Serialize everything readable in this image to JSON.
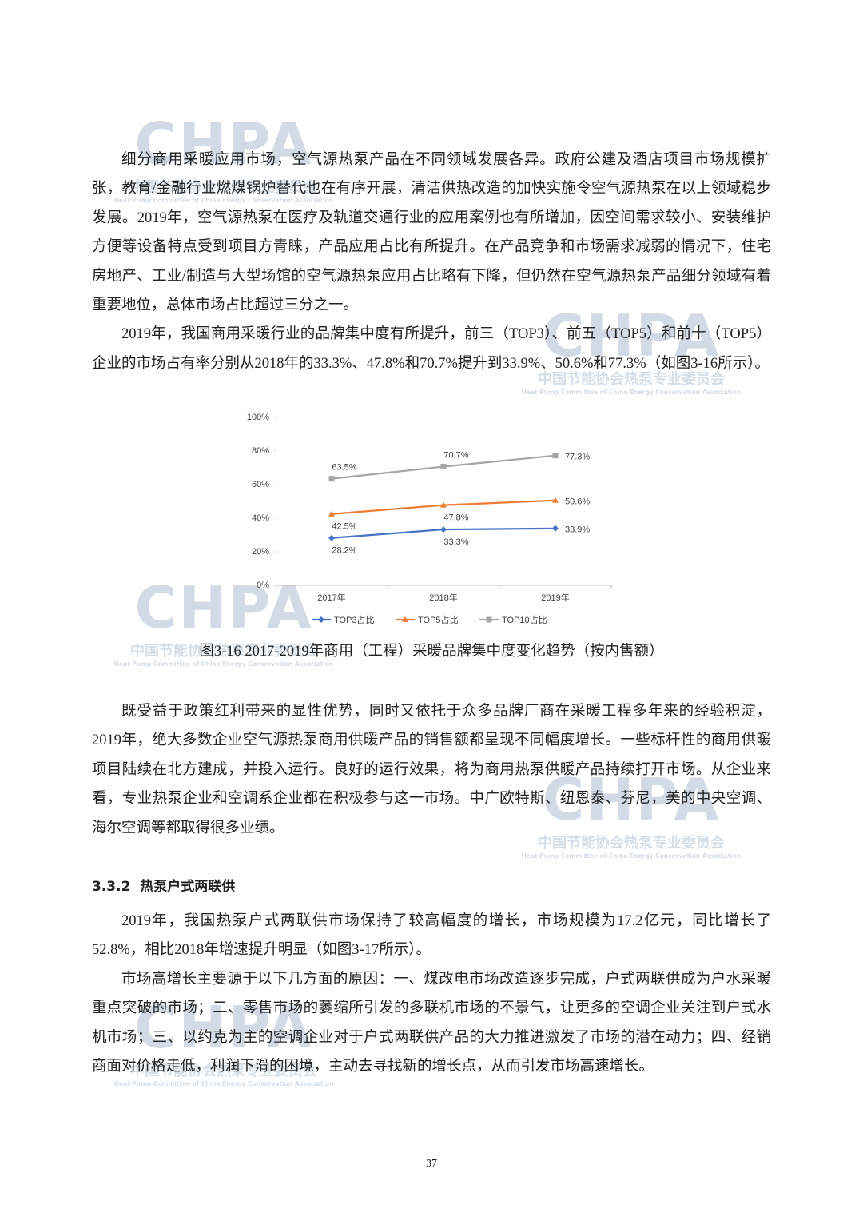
{
  "intro_paragraphs": [
    "细分商用采暖应用市场，空气源热泵产品在不同领域发展各异。政府公建及酒店项目市场规模扩张，教育/金融行业燃煤锅炉替代也在有序开展，清洁供热改造的加快实施令空气源热泵在以上领域稳步发展。2019年，空气源热泵在医疗及轨道交通行业的应用案例也有所增加，因空间需求较小、安装维护方便等设备特点受到项目方青睐，产品应用占比有所提升。在产品竞争和市场需求减弱的情况下，住宅房地产、工业/制造与大型场馆的空气源热泵应用占比略有下降，但仍然在空气源热泵产品细分领域有着重要地位，总体市场占比超过三分之一。",
    "2019年，我国商用采暖行业的品牌集中度有所提升，前三（TOP3）、前五（TOP5）和前十（TOP5）企业的市场占有率分别从2018年的33.3%、47.8%和70.7%提升到33.9%、50.6%和77.3%（如图3-16所示）。"
  ],
  "chart_data": {
    "type": "line",
    "categories": [
      "2017年",
      "2018年",
      "2019年"
    ],
    "series": [
      {
        "name": "TOP3占比",
        "color": "#4472c4",
        "marker": "diamond",
        "values": [
          28.2,
          33.3,
          33.9
        ],
        "value_labels": [
          "28.2%",
          "33.3%",
          "33.9%"
        ]
      },
      {
        "name": "TOP5占比",
        "color": "#ed7d31",
        "marker": "triangle",
        "values": [
          42.5,
          47.8,
          50.6
        ],
        "value_labels": [
          "42.5%",
          "47.8%",
          "50.6%"
        ]
      },
      {
        "name": "TOP10占比",
        "color": "#a5a5a5",
        "marker": "square",
        "values": [
          63.5,
          70.7,
          77.3
        ],
        "value_labels": [
          "63.5%",
          "70.7%",
          "77.3%"
        ]
      }
    ],
    "ylim": [
      0,
      100
    ],
    "yticks": [
      {
        "value": 0,
        "label": "0%"
      },
      {
        "value": 20,
        "label": "20%"
      },
      {
        "value": 40,
        "label": "40%"
      },
      {
        "value": 60,
        "label": "60%"
      },
      {
        "value": 80,
        "label": "80%"
      },
      {
        "value": 100,
        "label": "100%"
      }
    ],
    "grid": false,
    "legend": "bottom"
  },
  "figure_caption": "图3-16 2017-2019年商用（工程）采暖品牌集中度变化趋势（按内售额）",
  "after_figure_paragraphs": [
    "既受益于政策红利带来的显性优势，同时又依托于众多品牌厂商在采暖工程多年来的经验积淀，2019年，绝大多数企业空气源热泵商用供暖产品的销售额都呈现不同幅度增长。一些标杆性的商用供暖项目陆续在北方建成，并投入运行。良好的运行效果，将为商用热泵供暖产品持续打开市场。从企业来看，专业热泵企业和空调系企业都在积极参与这一市场。中广欧特斯、纽恩泰、芬尼，美的中央空调、海尔空调等都取得很多业绩。"
  ],
  "section": {
    "number": "3.3.2",
    "title": "热泵户式两联供",
    "paragraphs": [
      "2019年，我国热泵户式两联供市场保持了较高幅度的增长，市场规模为17.2亿元，同比增长了52.8%，相比2018年增速提升明显（如图3-17所示）。",
      "市场高增长主要源于以下几方面的原因：一、煤改电市场改造逐步完成，户式两联供成为户水采暖重点突破的市场；二、零售市场的萎缩所引发的多联机市场的不景气，让更多的空调企业关注到户式水机市场；三、以约克为主的空调企业对于户式两联供产品的大力推进激发了市场的潜在动力；四、经销商面对价格走低，利润下滑的困境，主动去寻找新的增长点，从而引发市场高速增长。"
    ]
  },
  "page_number": 37,
  "watermark": {
    "logo": "CHPA",
    "org_cn": "中国节能协会热泵专业委员会",
    "org_en": "Heat Pump Committee of China Energy Conservation Association"
  }
}
